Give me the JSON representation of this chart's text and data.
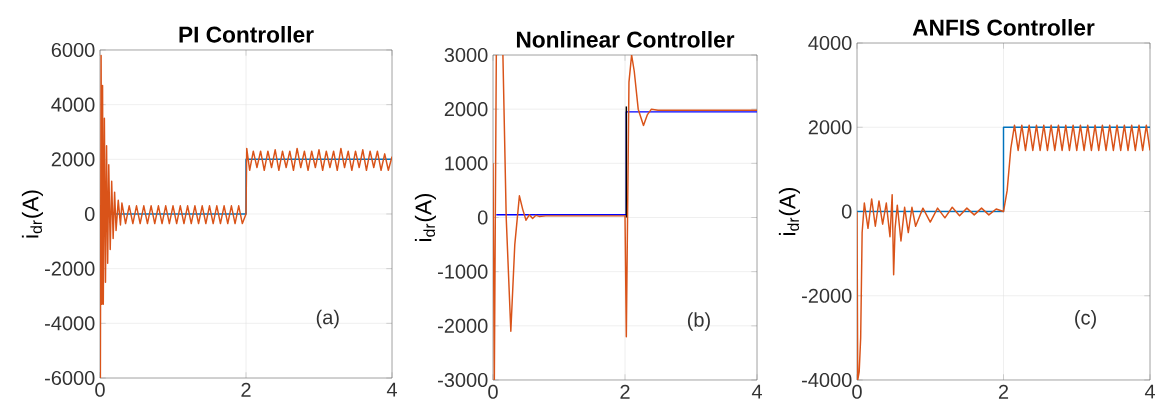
{
  "chart_data": [
    {
      "type": "line",
      "title": "PI Controller",
      "ylabel": "i$_{dr}$(A)",
      "annotations": [
        "(a)"
      ],
      "grid": true,
      "xlim": [
        0,
        4
      ],
      "xticks": [
        0,
        2,
        4
      ],
      "ylim": [
        -6000,
        6000
      ],
      "yticks": [
        {
          "value": -6000,
          "label": "-6000"
        },
        {
          "value": -4000,
          "label": "-4000"
        },
        {
          "value": -2000,
          "label": "-2000"
        },
        0,
        2000,
        4000,
        6000
      ],
      "series": [
        {
          "color": "#0072bd",
          "x": [
            0,
            2,
            2,
            4
          ],
          "values": [
            0,
            0,
            2000,
            2000
          ]
        },
        {
          "color": "#d95319",
          "x": [
            0,
            0.005,
            0.015,
            0.025,
            0.035,
            0.045,
            0.06,
            0.075,
            0.09,
            0.105,
            0.12,
            0.14,
            0.16,
            0.18,
            0.2,
            0.22,
            0.25,
            0.28,
            0.3,
            0.35,
            0.4,
            0.45,
            0.5,
            0.55,
            0.6,
            0.65,
            0.7,
            0.75,
            0.8,
            0.85,
            0.9,
            0.95,
            1.0,
            1.05,
            1.1,
            1.15,
            1.2,
            1.25,
            1.3,
            1.35,
            1.4,
            1.45,
            1.5,
            1.55,
            1.6,
            1.65,
            1.7,
            1.75,
            1.8,
            1.85,
            1.9,
            1.95,
            2.0,
            2.01,
            2.05,
            2.1,
            2.15,
            2.2,
            2.25,
            2.3,
            2.35,
            2.4,
            2.45,
            2.5,
            2.55,
            2.6,
            2.65,
            2.7,
            2.75,
            2.8,
            2.85,
            2.9,
            2.95,
            3.0,
            3.05,
            3.1,
            3.15,
            3.2,
            3.25,
            3.3,
            3.35,
            3.4,
            3.45,
            3.5,
            3.55,
            3.6,
            3.65,
            3.7,
            3.75,
            3.8,
            3.85,
            3.9,
            3.95,
            4.0
          ],
          "values": [
            0,
            -6000,
            5800,
            -3300,
            4700,
            -3300,
            3500,
            -2500,
            2500,
            -1800,
            1800,
            -1300,
            1200,
            -900,
            800,
            -600,
            500,
            -400,
            400,
            -350,
            300,
            -350,
            300,
            -350,
            300,
            -350,
            300,
            -350,
            300,
            -350,
            300,
            -350,
            300,
            -350,
            300,
            -350,
            300,
            -350,
            300,
            -350,
            300,
            -350,
            300,
            -350,
            300,
            -350,
            300,
            -350,
            300,
            -350,
            300,
            -350,
            0,
            2400,
            1600,
            2300,
            1700,
            2300,
            1600,
            2300,
            1700,
            2350,
            1600,
            2300,
            1700,
            2300,
            1600,
            2400,
            1700,
            2300,
            1600,
            2300,
            1700,
            2350,
            1600,
            2300,
            1700,
            2300,
            1600,
            2400,
            1700,
            2300,
            1600,
            2300,
            1700,
            2350,
            1600,
            2300,
            1700,
            2300,
            1600,
            2200,
            1600,
            2100
          ]
        }
      ]
    },
    {
      "type": "line",
      "title": "Nonlinear Controller",
      "ylabel": "i$_{dr}$(A)",
      "annotations": [
        "(b)"
      ],
      "grid": true,
      "xlim": [
        0,
        4
      ],
      "xticks": [
        0,
        2,
        4
      ],
      "ylim": [
        -3000,
        3000
      ],
      "yticks": [
        -3000,
        -2000,
        -1000,
        0,
        1000,
        2000,
        3000
      ],
      "series": [
        {
          "color": "#0000ff",
          "x": [
            0.05,
            2.02,
            2.02,
            4
          ],
          "values": [
            50,
            50,
            1950,
            1950
          ]
        },
        {
          "color": "#000000",
          "x": [
            2.02,
            2.02
          ],
          "values": [
            0,
            2050
          ]
        },
        {
          "color": "#d95319",
          "x": [
            0,
            0.02,
            0.05,
            0.1,
            0.15,
            0.2,
            0.27,
            0.33,
            0.4,
            0.45,
            0.5,
            0.55,
            0.6,
            0.65,
            0.7,
            0.8,
            1.0,
            1.5,
            2.0,
            2.02,
            2.06,
            2.1,
            2.14,
            2.2,
            2.28,
            2.34,
            2.4,
            2.5,
            3.0,
            4.0
          ],
          "values": [
            1000,
            -3000,
            3000,
            null,
            3000,
            0,
            -2100,
            -500,
            400,
            150,
            -50,
            50,
            -20,
            40,
            20,
            30,
            30,
            30,
            30,
            -2200,
            2500,
            3000,
            2700,
            2000,
            1700,
            1900,
            2000,
            1980,
            1980,
            1980
          ]
        }
      ]
    },
    {
      "type": "line",
      "title": "ANFIS Controller",
      "ylabel": "i$_{dr}$(A)",
      "annotations": [
        "(c)"
      ],
      "grid": true,
      "xlim": [
        0,
        4
      ],
      "xticks": [
        0,
        2,
        4
      ],
      "ylim": [
        -4000,
        4000
      ],
      "yticks": [
        -4000,
        -2000,
        0,
        2000,
        4000
      ],
      "series": [
        {
          "color": "#0072bd",
          "x": [
            0,
            2,
            2,
            4
          ],
          "values": [
            0,
            0,
            2000,
            2000
          ]
        },
        {
          "color": "#d95319",
          "x": [
            0,
            0.01,
            0.03,
            0.05,
            0.07,
            0.1,
            0.15,
            0.2,
            0.25,
            0.3,
            0.35,
            0.4,
            0.45,
            0.48,
            0.5,
            0.52,
            0.55,
            0.6,
            0.65,
            0.7,
            0.75,
            0.8,
            0.9,
            1.0,
            1.1,
            1.2,
            1.3,
            1.4,
            1.5,
            1.6,
            1.7,
            1.8,
            1.9,
            2.0,
            2.05,
            2.1,
            2.15,
            2.2,
            2.25,
            2.3,
            2.35,
            2.4,
            2.45,
            2.5,
            2.55,
            2.6,
            2.65,
            2.7,
            2.75,
            2.8,
            2.85,
            2.9,
            2.95,
            3.0,
            3.05,
            3.1,
            3.15,
            3.2,
            3.25,
            3.3,
            3.35,
            3.4,
            3.45,
            3.5,
            3.55,
            3.6,
            3.65,
            3.7,
            3.75,
            3.8,
            3.85,
            3.9,
            3.95,
            4.0
          ],
          "values": [
            0,
            -4000,
            -3800,
            -3000,
            -500,
            200,
            -400,
            300,
            -350,
            250,
            -300,
            200,
            -600,
            400,
            -1500,
            -400,
            150,
            -700,
            100,
            -500,
            100,
            -350,
            80,
            -250,
            80,
            -150,
            100,
            -100,
            80,
            -80,
            80,
            -80,
            60,
            0,
            500,
            1500,
            2050,
            1450,
            2050,
            1450,
            2050,
            1450,
            2050,
            1450,
            2050,
            1450,
            2050,
            1450,
            2050,
            1450,
            2050,
            1450,
            2050,
            1450,
            2050,
            1450,
            2050,
            1450,
            2050,
            1450,
            2050,
            1450,
            2050,
            1450,
            2050,
            1450,
            2050,
            1450,
            2050,
            1450,
            2050,
            1450,
            2050,
            1450
          ]
        }
      ]
    }
  ]
}
